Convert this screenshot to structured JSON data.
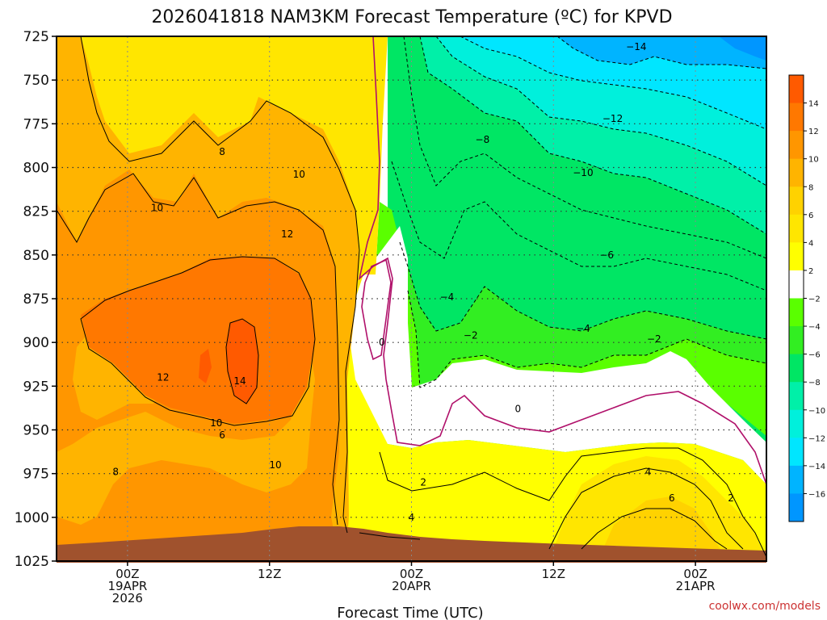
{
  "chart_data": {
    "type": "heatmap",
    "title": "2026041818 NAM3KM Forecast Temperature (ºC) for KPVD",
    "xlabel": "Forecast Time (UTC)",
    "ylabel": "",
    "credit": "coolwx.com/models",
    "y_levels": [
      725,
      750,
      775,
      800,
      825,
      850,
      875,
      900,
      925,
      950,
      975,
      1000,
      1025
    ],
    "y_tick_labels": [
      "725",
      "750",
      "775",
      "800",
      "825",
      "850",
      "875",
      "900",
      "925",
      "950",
      "975",
      "1000",
      "1025"
    ],
    "x_range_hours": [
      -6,
      54
    ],
    "x_ticks": [
      {
        "hour": 0,
        "lines": [
          "00Z",
          "19APR",
          "2026"
        ]
      },
      {
        "hour": 12,
        "lines": [
          "12Z"
        ]
      },
      {
        "hour": 24,
        "lines": [
          "00Z",
          "20APR"
        ]
      },
      {
        "hour": 36,
        "lines": [
          "12Z"
        ]
      },
      {
        "hour": 48,
        "lines": [
          "00Z",
          "21APR"
        ]
      }
    ],
    "colorbar": {
      "labels": [
        "14",
        "12",
        "10",
        "8",
        "6",
        "4",
        "2",
        "−2",
        "−4",
        "−6",
        "−8",
        "−10",
        "−12",
        "−14",
        "−16"
      ],
      "colors": [
        "#ff5a00",
        "#ff7800",
        "#ff9600",
        "#ffb400",
        "#ffd200",
        "#ffe600",
        "#ffff00",
        "#ffffff",
        "#5aff00",
        "#32ee22",
        "#00e664",
        "#00f0a8",
        "#00f0dc",
        "#00e6ff",
        "#00b4ff",
        "#0096ff"
      ]
    },
    "isotherm_labels": [
      {
        "text": "−14",
        "hour": 43.0,
        "p": 731
      },
      {
        "text": "−12",
        "hour": 41.0,
        "p": 772
      },
      {
        "text": "−10",
        "hour": 38.5,
        "p": 803
      },
      {
        "text": "−8",
        "hour": 30.0,
        "p": 784
      },
      {
        "text": "−6",
        "hour": 40.5,
        "p": 850
      },
      {
        "text": "−4",
        "hour": 27.0,
        "p": 874
      },
      {
        "text": "−4",
        "hour": 38.5,
        "p": 892
      },
      {
        "text": "−2",
        "hour": 29.0,
        "p": 896
      },
      {
        "text": "−2",
        "hour": 44.5,
        "p": 898
      },
      {
        "text": "0",
        "hour": 21.5,
        "p": 900
      },
      {
        "text": "0",
        "hour": 33.0,
        "p": 938
      },
      {
        "text": "2",
        "hour": 25.0,
        "p": 980
      },
      {
        "text": "2",
        "hour": 51.0,
        "p": 989
      },
      {
        "text": "4",
        "hour": 24.0,
        "p": 1000
      },
      {
        "text": "4",
        "hour": 44.0,
        "p": 974
      },
      {
        "text": "6",
        "hour": 46.0,
        "p": 989
      },
      {
        "text": "6",
        "hour": 8.0,
        "p": 953
      },
      {
        "text": "8",
        "hour": 8.0,
        "p": 791
      },
      {
        "text": "8",
        "hour": -1.0,
        "p": 974
      },
      {
        "text": "10",
        "hour": 2.5,
        "p": 823
      },
      {
        "text": "10",
        "hour": 14.5,
        "p": 804
      },
      {
        "text": "10",
        "hour": 7.5,
        "p": 946
      },
      {
        "text": "10",
        "hour": 12.5,
        "p": 970
      },
      {
        "text": "12",
        "hour": 13.5,
        "p": 838
      },
      {
        "text": "12",
        "hour": 3.0,
        "p": 920
      },
      {
        "text": "14",
        "hour": 9.5,
        "p": 922
      }
    ]
  }
}
